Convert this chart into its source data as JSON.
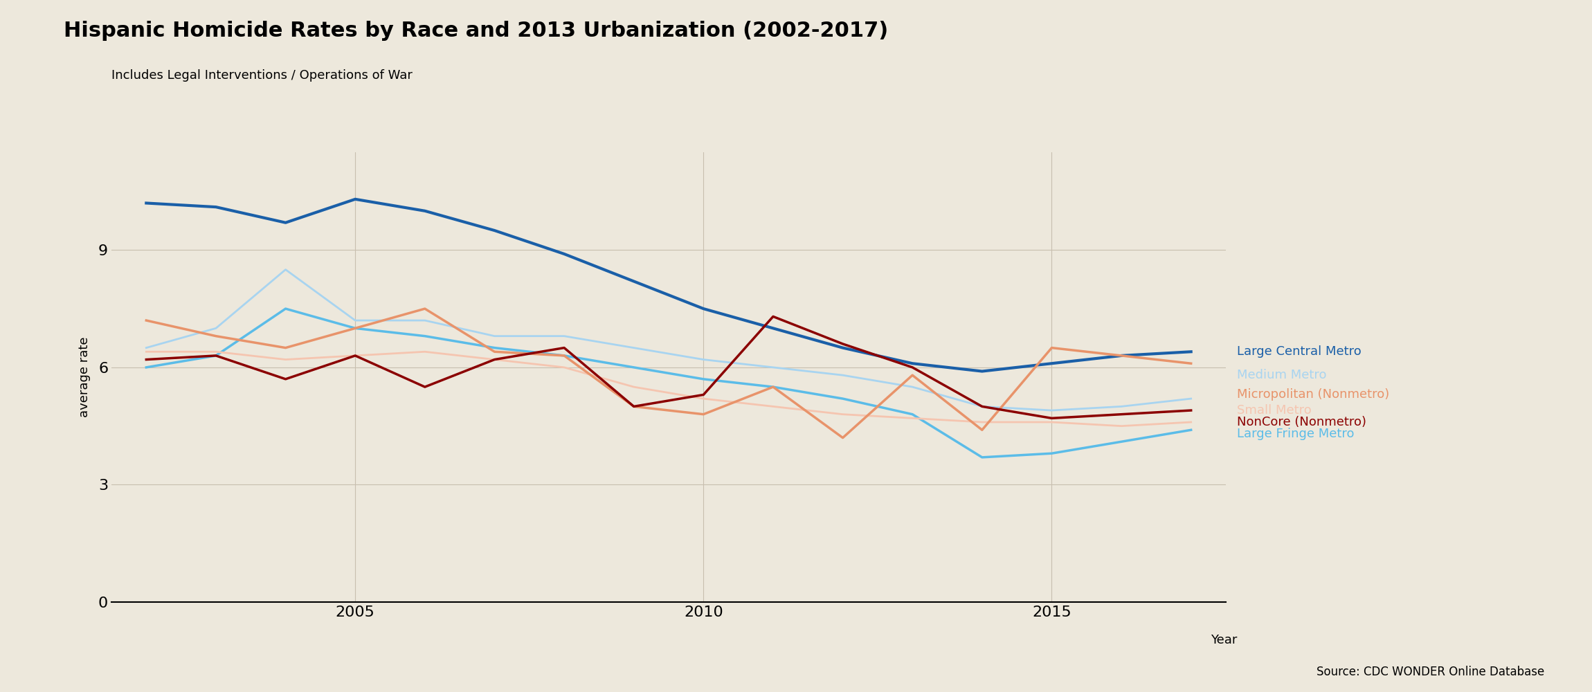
{
  "title": "Hispanic Homicide Rates by Race and 2013 Urbanization (2002-2017)",
  "subtitle": "Includes Legal Interventions / Operations of War",
  "ylabel": "average rate",
  "xlabel": "Year",
  "source": "Source: CDC WONDER Online Database",
  "background_color": "#ede8dc",
  "years": [
    2002,
    2003,
    2004,
    2005,
    2006,
    2007,
    2008,
    2009,
    2010,
    2011,
    2012,
    2013,
    2014,
    2015,
    2016,
    2017
  ],
  "series": [
    {
      "name": "Large Central Metro",
      "color": "#1a5fa8",
      "linewidth": 3.0,
      "data": [
        10.2,
        10.1,
        9.7,
        10.3,
        10.0,
        9.5,
        8.9,
        8.2,
        7.5,
        7.0,
        6.5,
        6.1,
        5.9,
        6.1,
        6.3,
        6.4
      ]
    },
    {
      "name": "Medium Metro",
      "color": "#a8d4f0",
      "linewidth": 2.0,
      "data": [
        6.5,
        7.0,
        8.5,
        7.2,
        7.2,
        6.8,
        6.8,
        6.5,
        6.2,
        6.0,
        5.8,
        5.5,
        5.0,
        4.9,
        5.0,
        5.2
      ]
    },
    {
      "name": "Large Fringe Metro",
      "color": "#5bbce8",
      "linewidth": 2.5,
      "data": [
        6.0,
        6.3,
        7.5,
        7.0,
        6.8,
        6.5,
        6.3,
        6.0,
        5.7,
        5.5,
        5.2,
        4.8,
        3.7,
        3.8,
        4.1,
        4.4
      ]
    },
    {
      "name": "Small Metro",
      "color": "#f5c5b0",
      "linewidth": 2.0,
      "data": [
        6.4,
        6.4,
        6.2,
        6.3,
        6.4,
        6.2,
        6.0,
        5.5,
        5.2,
        5.0,
        4.8,
        4.7,
        4.6,
        4.6,
        4.5,
        4.6
      ]
    },
    {
      "name": "Micropolitan (Nonmetro)",
      "color": "#e8936a",
      "linewidth": 2.5,
      "data": [
        7.2,
        6.8,
        6.5,
        7.0,
        7.5,
        6.4,
        6.3,
        5.0,
        4.8,
        5.5,
        4.2,
        5.8,
        4.4,
        6.5,
        6.3,
        6.1
      ]
    },
    {
      "name": "NonCore (Nonmetro)",
      "color": "#8b0000",
      "linewidth": 2.5,
      "data": [
        6.2,
        6.3,
        5.7,
        6.3,
        5.5,
        6.2,
        6.5,
        5.0,
        5.3,
        7.3,
        6.6,
        6.0,
        5.0,
        4.7,
        4.8,
        4.9
      ]
    }
  ],
  "ylim": [
    0,
    11.5
  ],
  "yticks": [
    0,
    3,
    6,
    9
  ],
  "xticks": [
    2005,
    2010,
    2015
  ],
  "legend_entries": [
    {
      "name": "Large Central Metro",
      "color": "#1a5fa8",
      "y": 6.4
    },
    {
      "name": "Medium Metro",
      "color": "#a8d4f0",
      "y": 5.8
    },
    {
      "name": "Micropolitan (Nonmetro)",
      "color": "#e8936a",
      "y": 5.3
    },
    {
      "name": "Small Metro",
      "color": "#f5c5b0",
      "y": 4.9
    },
    {
      "name": "NonCore (Nonmetro)",
      "color": "#8b0000",
      "y": 4.6
    },
    {
      "name": "Large Fringe Metro",
      "color": "#5bbce8",
      "y": 4.3
    }
  ]
}
